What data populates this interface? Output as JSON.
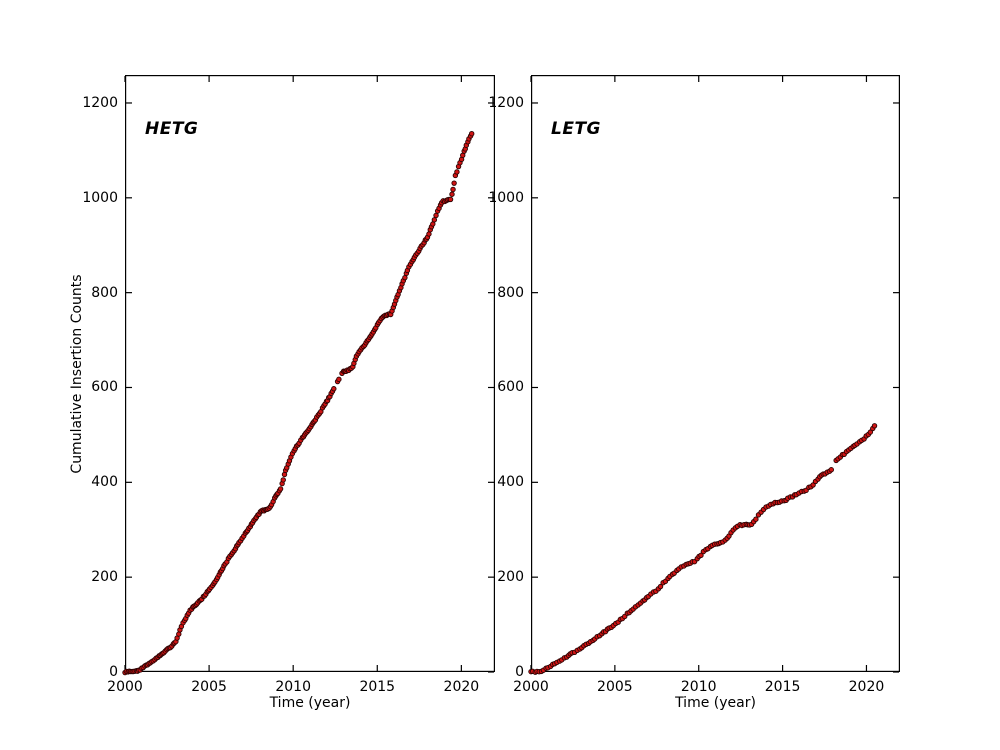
{
  "figure": {
    "background": "#ffffff",
    "axis_color": "#000000",
    "marker": {
      "fill": "#d01414",
      "edge": "#2a0303",
      "radius": 2.25,
      "edge_width": 0.9
    }
  },
  "chart_data": [
    {
      "type": "scatter",
      "panel_label": "HETG",
      "xlabel": "Time (year)",
      "ylabel": "Cumulative Insertion Counts",
      "xlim": [
        2000,
        2022
      ],
      "ylim": [
        0,
        1259
      ],
      "xticks": [
        2000,
        2005,
        2010,
        2015,
        2020
      ],
      "yticks": [
        0,
        200,
        400,
        600,
        800,
        1000,
        1200
      ],
      "grid": false,
      "legend": "none",
      "x": [
        2000.0,
        2000.8,
        2001.2,
        2001.7,
        2002.2,
        2002.7,
        2003.05,
        2003.35,
        2003.9,
        2004.5,
        2005.0,
        2005.45,
        2005.75,
        2006.3,
        2006.9,
        2007.5,
        2008.05,
        2008.6,
        2008.95,
        2009.3,
        2009.5,
        2010.0,
        2010.6,
        2011.2,
        2011.7,
        2012.4,
        2012.7,
        2012.95,
        2013.5,
        2013.8,
        2014.4,
        2014.9,
        2015.3,
        2015.8,
        2016.1,
        2016.9,
        2017.5,
        2018.0,
        2018.6,
        2018.85,
        2019.4,
        2019.65,
        2020.0,
        2020.3,
        2020.62
      ],
      "y": [
        0,
        3,
        13,
        25,
        39,
        52,
        65,
        97,
        131,
        152,
        173,
        196,
        216,
        247,
        278,
        310,
        338,
        346,
        370,
        390,
        420,
        465,
        496,
        525,
        553,
        595,
        616,
        633,
        640,
        669,
        697,
        725,
        749,
        755,
        784,
        855,
        890,
        918,
        974,
        992,
        998,
        1048,
        1080,
        1111,
        1137
      ],
      "gaps": [
        [
          2012.5,
          2012.63
        ],
        [
          2012.72,
          2012.86
        ]
      ],
      "point_spacing_years": 0.08
    },
    {
      "type": "scatter",
      "panel_label": "LETG",
      "xlabel": "Time (year)",
      "ylabel": "Cumulative Insertion Counts",
      "xlim": [
        2000,
        2022
      ],
      "ylim": [
        0,
        1259
      ],
      "xticks": [
        2000,
        2005,
        2010,
        2015,
        2020
      ],
      "yticks": [
        0,
        200,
        400,
        600,
        800,
        1000,
        1200
      ],
      "grid": false,
      "legend": "none",
      "x": [
        2000.0,
        2000.7,
        2001.4,
        2002.3,
        2003.1,
        2004.1,
        2005.1,
        2006.1,
        2007.1,
        2007.7,
        2007.9,
        2008.85,
        2009.3,
        2009.7,
        2010.4,
        2011.0,
        2011.5,
        2012.2,
        2012.5,
        2013.2,
        2013.8,
        2014.3,
        2015.0,
        2015.6,
        2016.4,
        2016.8,
        2017.2,
        2017.9,
        2018.1,
        2018.95,
        2019.5,
        2020.1,
        2020.4,
        2020.6
      ],
      "y": [
        0,
        2,
        18,
        36,
        53,
        78,
        103,
        134,
        162,
        178,
        188,
        219,
        228,
        232,
        257,
        270,
        274,
        306,
        310,
        312,
        342,
        355,
        360,
        370,
        384,
        394,
        412,
        426,
        444,
        468,
        482,
        500,
        514,
        525
      ],
      "gaps": [
        [
          2017.93,
          2018.08
        ]
      ],
      "point_spacing_years": 0.13
    }
  ]
}
